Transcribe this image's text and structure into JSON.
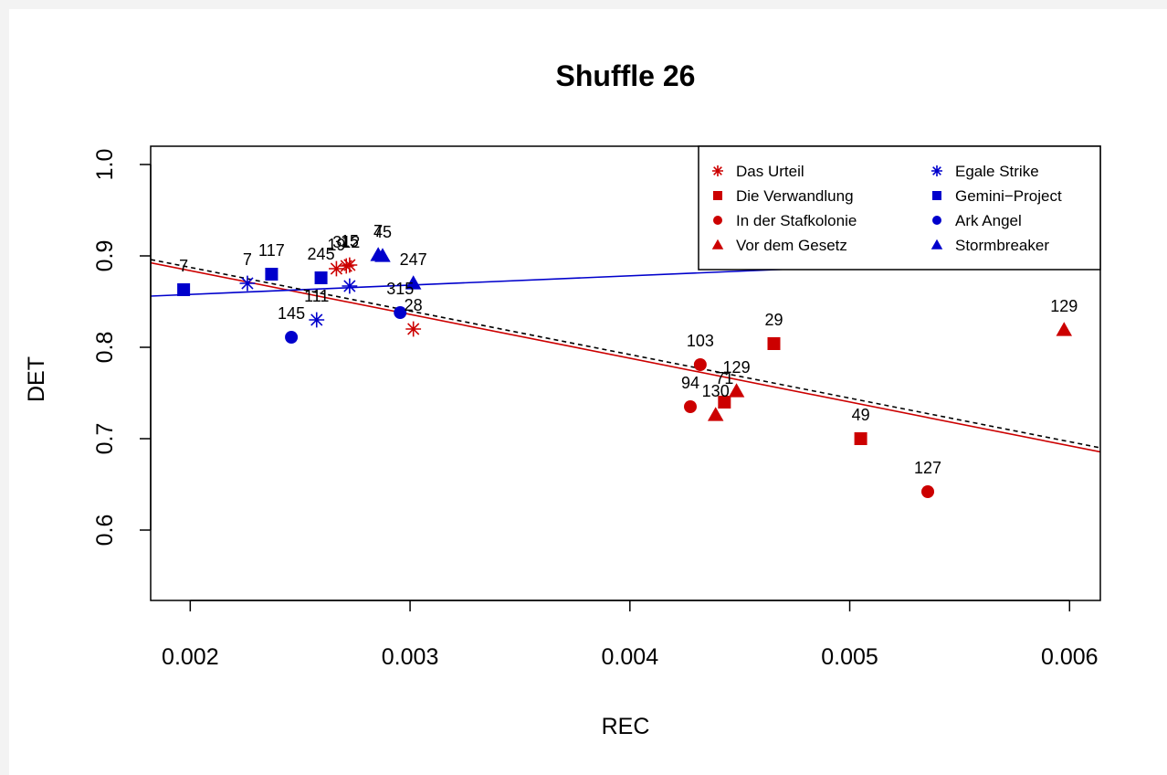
{
  "chart_data": {
    "type": "scatter",
    "title": "Shuffle 26",
    "xlabel": "REC",
    "ylabel": "DET",
    "xlim": [
      0.00182,
      0.00614
    ],
    "ylim": [
      0.523,
      1.02
    ],
    "xticks": [
      0.002,
      0.003,
      0.004,
      0.005,
      0.006
    ],
    "xtick_labels": [
      "0.002",
      "0.003",
      "0.004",
      "0.005",
      "0.006"
    ],
    "yticks": [
      0.6,
      0.7,
      0.8,
      0.9,
      1.0
    ],
    "ytick_labels": [
      "0.6",
      "0.7",
      "0.8",
      "0.9",
      "1.0"
    ],
    "legend_position": "top-right",
    "colors": {
      "red": "#cc0000",
      "blue": "#0000cc",
      "black": "#000000"
    },
    "series": [
      {
        "name": "Das Urteil",
        "marker": "asterisk",
        "color": "#cc0000",
        "points": [
          {
            "x": 0.002665,
            "y": 0.886,
            "label": "19"
          },
          {
            "x": 0.002725,
            "y": 0.89,
            "label": "15"
          },
          {
            "x": 0.00271,
            "y": 0.889,
            "label": "312"
          },
          {
            "x": 0.003015,
            "y": 0.82,
            "label": "28"
          }
        ]
      },
      {
        "name": "Die Verwandlung",
        "marker": "square",
        "color": "#cc0000",
        "points": [
          {
            "x": 0.004655,
            "y": 0.804,
            "label": "29"
          },
          {
            "x": 0.00443,
            "y": 0.74,
            "label": "71"
          },
          {
            "x": 0.00505,
            "y": 0.7,
            "label": "49"
          }
        ]
      },
      {
        "name": "In der Stafkolonie",
        "marker": "circle",
        "color": "#cc0000",
        "points": [
          {
            "x": 0.00432,
            "y": 0.781,
            "label": "103"
          },
          {
            "x": 0.004275,
            "y": 0.735,
            "label": "94"
          },
          {
            "x": 0.005355,
            "y": 0.642,
            "label": "127"
          }
        ]
      },
      {
        "name": "Vor dem Gesetz",
        "marker": "triangle",
        "color": "#cc0000",
        "points": [
          {
            "x": 0.004485,
            "y": 0.752,
            "label": "129"
          },
          {
            "x": 0.00439,
            "y": 0.726,
            "label": "130"
          },
          {
            "x": 0.005975,
            "y": 0.819,
            "label": "129"
          }
        ]
      },
      {
        "name": "Egale Strike",
        "marker": "asterisk",
        "color": "#0000cc",
        "points": [
          {
            "x": 0.00226,
            "y": 0.87,
            "label": "7"
          },
          {
            "x": 0.002725,
            "y": 0.867,
            "label": ""
          },
          {
            "x": 0.002575,
            "y": 0.83,
            "label": "111"
          }
        ]
      },
      {
        "name": "Gemini−Project",
        "marker": "square",
        "color": "#0000cc",
        "points": [
          {
            "x": 0.00197,
            "y": 0.863,
            "label": "7"
          },
          {
            "x": 0.00237,
            "y": 0.88,
            "label": "117"
          },
          {
            "x": 0.002595,
            "y": 0.876,
            "label": "245"
          }
        ]
      },
      {
        "name": "Ark Angel",
        "marker": "circle",
        "color": "#0000cc",
        "points": [
          {
            "x": 0.00246,
            "y": 0.811,
            "label": "145"
          },
          {
            "x": 0.002955,
            "y": 0.838,
            "label": "315"
          }
        ]
      },
      {
        "name": "Stormbreaker",
        "marker": "triangle",
        "color": "#0000cc",
        "points": [
          {
            "x": 0.002855,
            "y": 0.901,
            "label": "7"
          },
          {
            "x": 0.002875,
            "y": 0.9,
            "label": "45"
          },
          {
            "x": 0.003015,
            "y": 0.87,
            "label": "247"
          }
        ]
      }
    ],
    "lines": [
      {
        "color": "#cc0000",
        "style": "solid",
        "x": [
          0.00182,
          0.00614
        ],
        "y": [
          0.8925,
          0.6855
        ]
      },
      {
        "color": "#0000cc",
        "style": "solid",
        "x": [
          0.00182,
          0.00614
        ],
        "y": [
          0.856,
          0.9
        ]
      },
      {
        "color": "#000000",
        "style": "dashed",
        "x": [
          0.00182,
          0.00614
        ],
        "y": [
          0.896,
          0.69
        ]
      }
    ]
  }
}
